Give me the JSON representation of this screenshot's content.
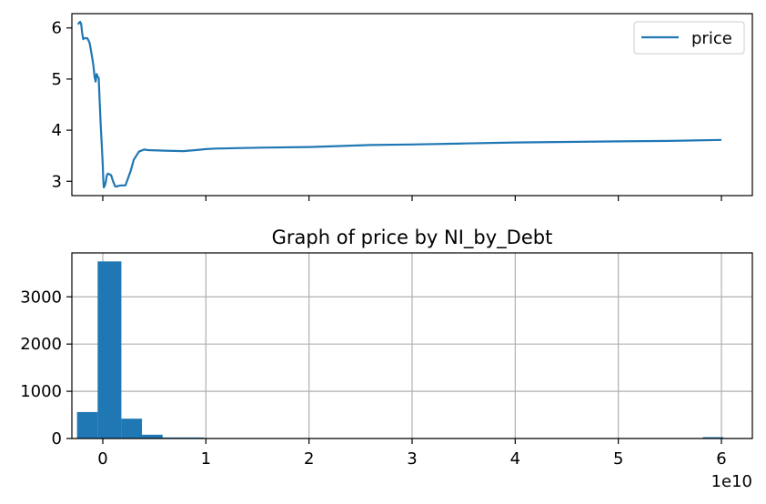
{
  "chart_data": [
    {
      "type": "line",
      "title": "",
      "xlabel": "",
      "ylabel": "",
      "xlim": [
        -0.3,
        6.3
      ],
      "ylim": [
        2.72,
        6.28
      ],
      "x_scale_label": "",
      "x_ticks": [
        0,
        1,
        2,
        3,
        4,
        5,
        6
      ],
      "x_tick_labels_visible": false,
      "y_ticks": [
        3,
        4,
        5,
        6
      ],
      "y_tick_labels": [
        "3",
        "4",
        "5",
        "6"
      ],
      "grid": false,
      "legend": {
        "position": "top-right",
        "entries": [
          "price"
        ]
      },
      "series": [
        {
          "name": "price",
          "color": "#1f77b4",
          "x": [
            -0.24,
            -0.23,
            -0.22,
            -0.21,
            -0.2,
            -0.19,
            -0.18,
            -0.15,
            -0.13,
            -0.12,
            -0.1,
            -0.09,
            -0.08,
            -0.07,
            -0.06,
            -0.05,
            -0.04,
            -0.03,
            -0.02,
            -0.01,
            0.0,
            0.005,
            0.01,
            0.015,
            0.02,
            0.03,
            0.04,
            0.05,
            0.06,
            0.08,
            0.1,
            0.12,
            0.14,
            0.15,
            0.18,
            0.22,
            0.27,
            0.3,
            0.35,
            0.4,
            0.44,
            0.6,
            0.78,
            0.9,
            1.0,
            1.1,
            1.3,
            1.6,
            2.0,
            2.6,
            3.0,
            3.5,
            4.0,
            4.5,
            5.0,
            5.5,
            6.0
          ],
          "y": [
            6.07,
            6.1,
            6.12,
            6.08,
            5.9,
            5.78,
            5.8,
            5.8,
            5.72,
            5.62,
            5.38,
            5.25,
            5.05,
            4.95,
            5.1,
            5.05,
            5.02,
            4.55,
            4.1,
            3.7,
            3.3,
            3.0,
            2.88,
            2.9,
            2.92,
            3.0,
            3.12,
            3.15,
            3.14,
            3.12,
            3.0,
            2.9,
            2.9,
            2.91,
            2.92,
            2.92,
            3.2,
            3.42,
            3.58,
            3.62,
            3.61,
            3.6,
            3.59,
            3.61,
            3.63,
            3.64,
            3.65,
            3.66,
            3.67,
            3.71,
            3.72,
            3.74,
            3.76,
            3.77,
            3.78,
            3.79,
            3.81
          ]
        }
      ]
    },
    {
      "type": "bar",
      "title": "Graph of price by NI_by_Debt",
      "xlabel": "",
      "ylabel": "",
      "xlim": [
        -0.3,
        6.3
      ],
      "ylim": [
        0,
        3930
      ],
      "x_scale_label": "1e10",
      "x_ticks": [
        0,
        1,
        2,
        3,
        4,
        5,
        6
      ],
      "x_tick_labels": [
        "0",
        "1",
        "2",
        "3",
        "4",
        "5",
        "6"
      ],
      "y_ticks": [
        0,
        1000,
        2000,
        3000
      ],
      "y_tick_labels": [
        "0",
        "1000",
        "2000",
        "3000"
      ],
      "grid": true,
      "series": [
        {
          "color": "#1f77b4",
          "bins": [
            [
              -0.25,
              -0.05,
              560
            ],
            [
              -0.05,
              0.18,
              3750
            ],
            [
              0.18,
              0.38,
              420
            ],
            [
              0.38,
              0.58,
              80
            ],
            [
              0.58,
              0.98,
              22
            ],
            [
              0.98,
              1.8,
              4
            ],
            [
              5.82,
              6.02,
              28
            ]
          ]
        }
      ]
    }
  ]
}
